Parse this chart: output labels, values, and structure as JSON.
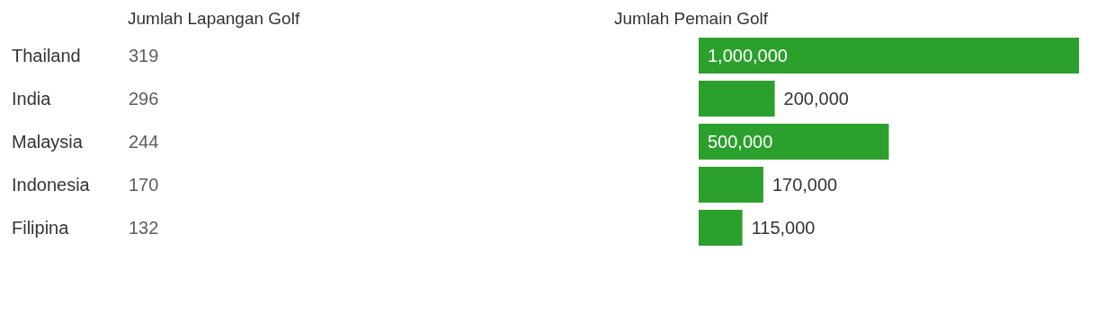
{
  "chart_data": [
    {
      "type": "other",
      "title": "Jumlah Lapangan Golf",
      "categories": [
        "Thailand",
        "India",
        "Malaysia",
        "Indonesia",
        "Filipina"
      ],
      "values": [
        319,
        296,
        244,
        170,
        132
      ],
      "data_labels": true
    },
    {
      "type": "bar",
      "orientation": "horizontal",
      "title": "Jumlah Pemain Golf",
      "categories": [
        null,
        null,
        null,
        null,
        null
      ],
      "values": [
        1000000,
        200000,
        500000,
        170000,
        115000
      ],
      "value_labels": [
        "1,000,000",
        "200,000",
        "500,000",
        "170,000",
        "115,000"
      ],
      "color": "#2ca02c"
    }
  ]
}
